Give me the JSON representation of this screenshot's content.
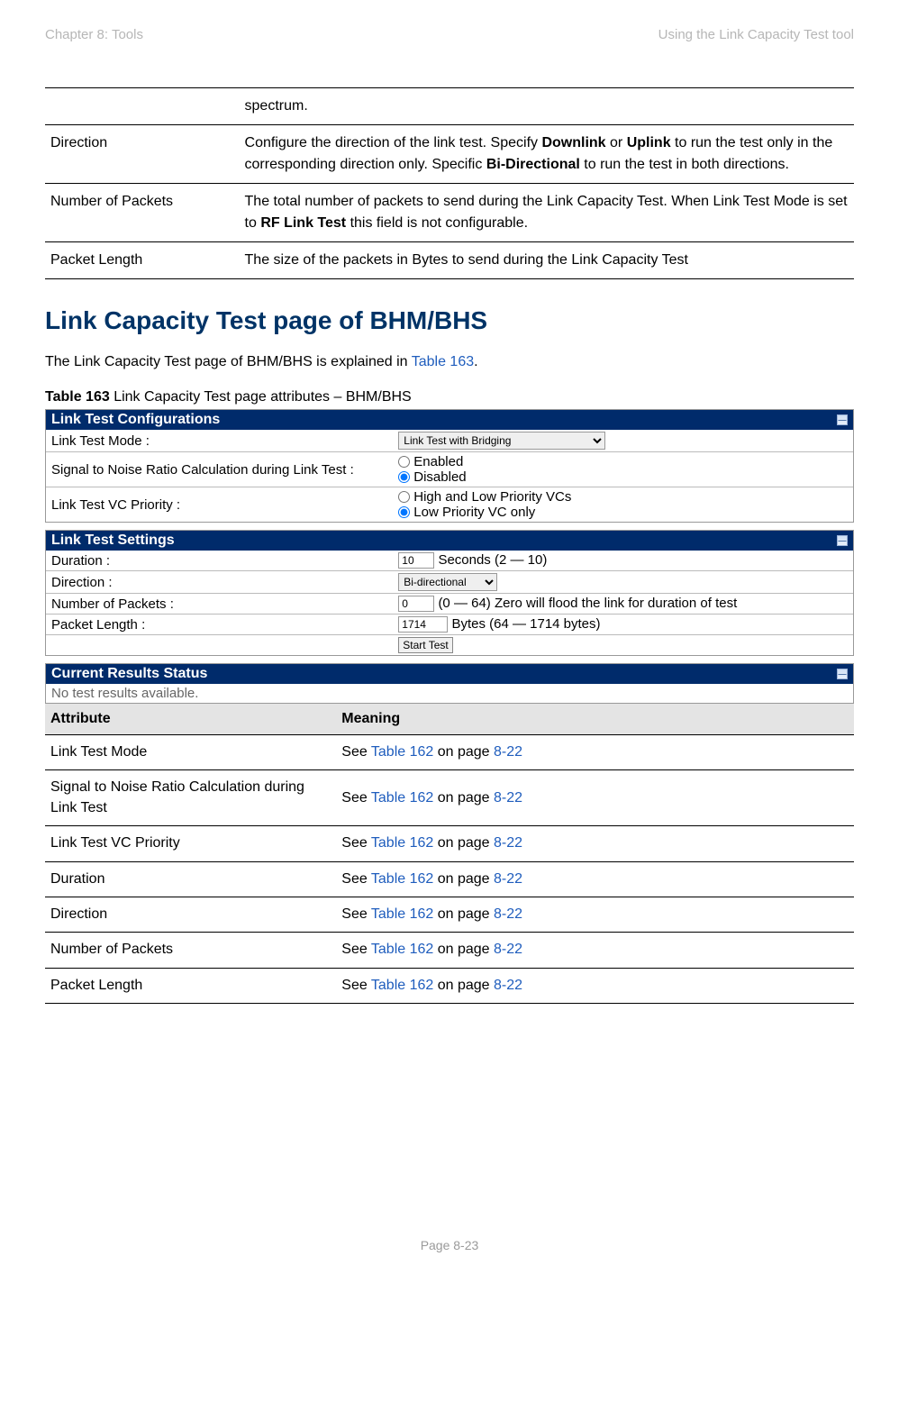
{
  "header": {
    "left": "Chapter 8:  Tools",
    "right": "Using the Link Capacity Test tool"
  },
  "top_table": {
    "rows": [
      {
        "attr": "",
        "meaning_plain": "spectrum."
      },
      {
        "attr": "Direction",
        "meaning_prefix": "Configure the direction of the link test. Specify ",
        "b1": "Downlink",
        "mid1": " or ",
        "b2": "Uplink",
        "mid2": " to run the test only in the corresponding direction only. Specific ",
        "b3": "Bi-Directional",
        "suffix": " to run the test in both directions."
      },
      {
        "attr": "Number of Packets",
        "meaning_prefix": "The total number of packets to send during the Link Capacity Test. When Link Test Mode is set to ",
        "b1": "RF Link Test",
        "suffix": " this field is not configurable."
      },
      {
        "attr": "Packet Length",
        "meaning_plain": "The size of the packets in Bytes to send during the Link Capacity Test"
      }
    ]
  },
  "section_title": "Link Capacity Test page of BHM/BHS",
  "intro_prefix": "The Link Capacity Test page of BHM/BHS is explained in ",
  "intro_link": "Table 163",
  "intro_suffix": ".",
  "caption_bold": "Table 163",
  "caption_rest": " Link Capacity Test page attributes – BHM/BHS",
  "config_panel": {
    "title": "Link Test Configurations",
    "rows": {
      "mode_label": "Link Test Mode :",
      "mode_value": "Link Test with Bridging",
      "snr_label": "Signal to Noise Ratio Calculation during Link Test :",
      "snr_opt1": "Enabled",
      "snr_opt2": "Disabled",
      "vc_label": "Link Test VC Priority :",
      "vc_opt1": "High and Low Priority VCs",
      "vc_opt2": "Low Priority VC only"
    }
  },
  "settings_panel": {
    "title": "Link Test Settings",
    "duration_label": "Duration :",
    "duration_value": "10",
    "duration_suffix": "Seconds (2 — 10)",
    "direction_label": "Direction :",
    "direction_value": "Bi-directional",
    "numpkt_label": "Number of Packets :",
    "numpkt_value": "0",
    "numpkt_suffix": "(0 — 64) Zero will flood the link for duration of test",
    "pktlen_label": "Packet Length :",
    "pktlen_value": "1714",
    "pktlen_suffix": "Bytes (64 — 1714 bytes)",
    "start_btn": "Start Test"
  },
  "results_panel": {
    "title": "Current Results Status",
    "body": "No test results available."
  },
  "attr_table": {
    "header_attr": "Attribute",
    "header_meaning": "Meaning",
    "see_prefix": "See ",
    "table_link": "Table 162",
    "on_page": " on page ",
    "page_link": "8-22",
    "rows": [
      "Link Test Mode",
      "Signal to Noise Ratio Calculation during Link Test",
      "Link Test VC Priority",
      "Duration",
      "Direction",
      "Number of Packets",
      "Packet Length"
    ]
  },
  "footer": "Page 8-23",
  "colors": {
    "header_gray": "#b6b6b6",
    "heading_blue": "#003366",
    "link_blue": "#1f5dbd",
    "panel_head_bg": "#002b6b",
    "attr_header_bg": "#e4e4e4"
  }
}
